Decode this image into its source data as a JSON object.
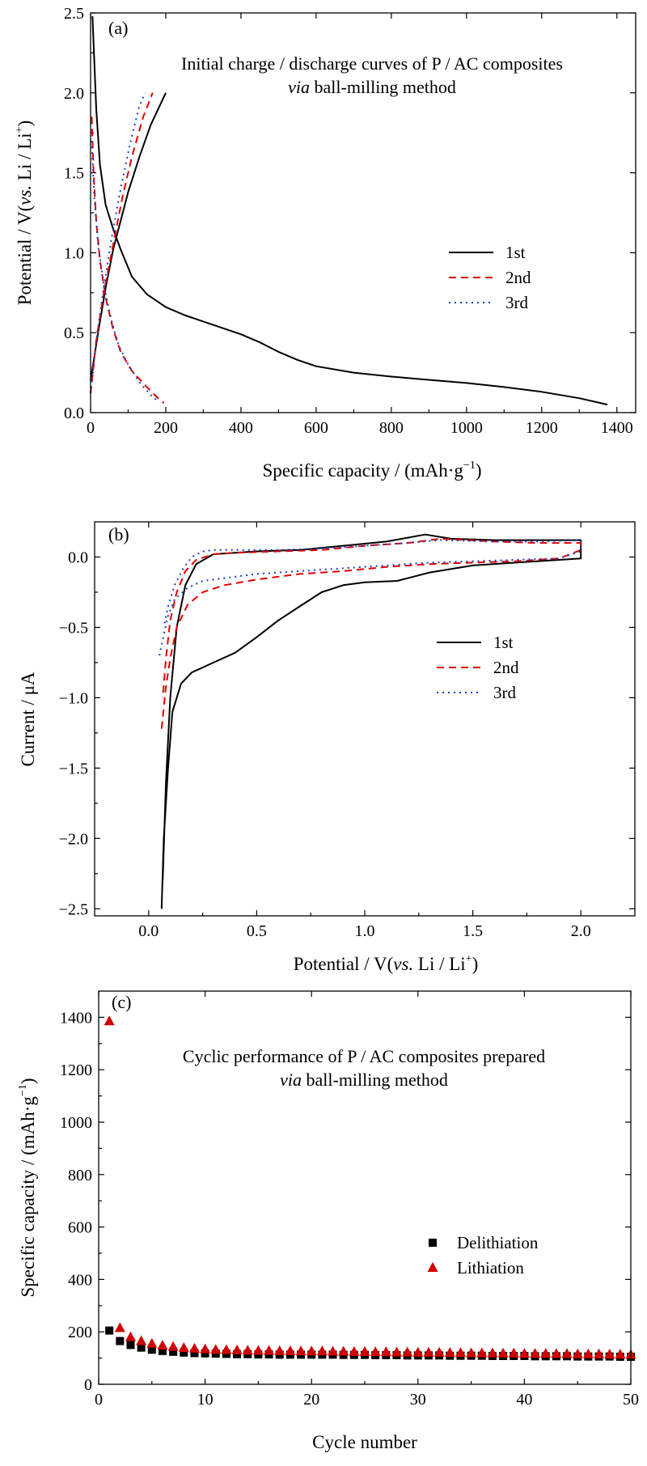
{
  "chart_data": [
    {
      "panel": "(a)",
      "type": "line",
      "title_line1": "Initial charge / discharge curves of P / AC composites",
      "title_line2_italic": "via",
      "title_line2_rest": " ball-milling method",
      "xlabel": "Specific capacity / (mAh·g",
      "xlabel_sup": "−1",
      "xlabel_end": ")",
      "ylabel": "Potential / V(",
      "ylabel_italic": "vs.",
      "ylabel_rest": " Li / Li",
      "ylabel_sup": "+",
      "ylabel_end": ")",
      "xlim": [
        0,
        1450
      ],
      "ylim": [
        0,
        2.5
      ],
      "xticks": [
        "0",
        "200",
        "400",
        "600",
        "800",
        "1000",
        "1200",
        "1400"
      ],
      "xtick_values": [
        0,
        200,
        400,
        600,
        800,
        1000,
        1200,
        1400
      ],
      "yticks": [
        "0.0",
        "0.5",
        "1.0",
        "1.5",
        "2.0",
        "2.5"
      ],
      "ytick_values": [
        0,
        0.5,
        1.0,
        1.5,
        2.0,
        2.5
      ],
      "legend_position": "center-right",
      "series": [
        {
          "name": "1st",
          "color": "#000000",
          "dash": "solid",
          "discharge": [
            [
              5,
              2.48
            ],
            [
              10,
              2.2
            ],
            [
              15,
              1.9
            ],
            [
              25,
              1.55
            ],
            [
              40,
              1.3
            ],
            [
              60,
              1.15
            ],
            [
              80,
              1.02
            ],
            [
              110,
              0.85
            ],
            [
              150,
              0.74
            ],
            [
              200,
              0.66
            ],
            [
              250,
              0.61
            ],
            [
              300,
              0.57
            ],
            [
              350,
              0.53
            ],
            [
              400,
              0.49
            ],
            [
              450,
              0.44
            ],
            [
              500,
              0.38
            ],
            [
              550,
              0.33
            ],
            [
              600,
              0.29
            ],
            [
              700,
              0.25
            ],
            [
              800,
              0.225
            ],
            [
              900,
              0.205
            ],
            [
              1000,
              0.185
            ],
            [
              1100,
              0.16
            ],
            [
              1200,
              0.13
            ],
            [
              1300,
              0.09
            ],
            [
              1375,
              0.05
            ]
          ],
          "charge": [
            [
              0,
              0.2
            ],
            [
              20,
              0.5
            ],
            [
              40,
              0.78
            ],
            [
              60,
              1.02
            ],
            [
              80,
              1.2
            ],
            [
              100,
              1.38
            ],
            [
              130,
              1.6
            ],
            [
              160,
              1.8
            ],
            [
              200,
              2.0
            ]
          ]
        },
        {
          "name": "2nd",
          "color": "#e00000",
          "dash": "dashed",
          "discharge": [
            [
              3,
              1.85
            ],
            [
              8,
              1.5
            ],
            [
              15,
              1.2
            ],
            [
              25,
              0.95
            ],
            [
              40,
              0.72
            ],
            [
              60,
              0.52
            ],
            [
              80,
              0.38
            ],
            [
              110,
              0.26
            ],
            [
              150,
              0.16
            ],
            [
              175,
              0.1
            ],
            [
              195,
              0.06
            ]
          ],
          "charge": [
            [
              0,
              0.12
            ],
            [
              15,
              0.45
            ],
            [
              35,
              0.75
            ],
            [
              60,
              1.05
            ],
            [
              85,
              1.35
            ],
            [
              110,
              1.6
            ],
            [
              140,
              1.85
            ],
            [
              165,
              2.0
            ]
          ]
        },
        {
          "name": "3rd",
          "color": "#1a3cc8",
          "dash": "dotted",
          "discharge": [
            [
              3,
              1.7
            ],
            [
              10,
              1.35
            ],
            [
              20,
              1.05
            ],
            [
              35,
              0.8
            ],
            [
              55,
              0.58
            ],
            [
              75,
              0.42
            ],
            [
              100,
              0.3
            ],
            [
              130,
              0.19
            ],
            [
              160,
              0.11
            ],
            [
              180,
              0.07
            ]
          ],
          "charge": [
            [
              0,
              0.12
            ],
            [
              15,
              0.45
            ],
            [
              35,
              0.78
            ],
            [
              55,
              1.08
            ],
            [
              80,
              1.4
            ],
            [
              105,
              1.68
            ],
            [
              130,
              1.92
            ],
            [
              145,
              2.0
            ]
          ]
        }
      ]
    },
    {
      "panel": "(b)",
      "type": "line",
      "xlabel": "Potential / V(",
      "xlabel_italic": "vs.",
      "xlabel_rest": " Li / Li",
      "xlabel_sup": "+",
      "xlabel_end": ")",
      "ylabel": "Current / μA",
      "xlim": [
        -0.25,
        2.25
      ],
      "ylim": [
        -2.55,
        0.25
      ],
      "xticks": [
        "0.0",
        "0.5",
        "1.0",
        "1.5",
        "2.0"
      ],
      "xtick_values": [
        0,
        0.5,
        1.0,
        1.5,
        2.0
      ],
      "yticks": [
        "0.0",
        "−0.5",
        "−1.0",
        "−1.5",
        "−2.0",
        "−2.5"
      ],
      "ytick_values": [
        0,
        -0.5,
        -1.0,
        -1.5,
        -2.0,
        -2.5
      ],
      "legend_position": "center-right",
      "series": [
        {
          "name": "1st",
          "color": "#000000",
          "dash": "solid",
          "points": [
            [
              0.06,
              -2.5
            ],
            [
              0.07,
              -2.0
            ],
            [
              0.09,
              -1.5
            ],
            [
              0.11,
              -1.1
            ],
            [
              0.15,
              -0.9
            ],
            [
              0.2,
              -0.82
            ],
            [
              0.3,
              -0.75
            ],
            [
              0.4,
              -0.68
            ],
            [
              0.5,
              -0.57
            ],
            [
              0.6,
              -0.45
            ],
            [
              0.7,
              -0.35
            ],
            [
              0.8,
              -0.25
            ],
            [
              0.9,
              -0.2
            ],
            [
              1.0,
              -0.18
            ],
            [
              1.15,
              -0.17
            ],
            [
              1.3,
              -0.11
            ],
            [
              1.5,
              -0.06
            ],
            [
              1.7,
              -0.04
            ],
            [
              1.9,
              -0.02
            ],
            [
              2.0,
              -0.01
            ],
            [
              2.0,
              0.12
            ],
            [
              1.6,
              0.12
            ],
            [
              1.4,
              0.13
            ],
            [
              1.28,
              0.16
            ],
            [
              1.1,
              0.11
            ],
            [
              0.9,
              0.08
            ],
            [
              0.7,
              0.05
            ],
            [
              0.5,
              0.04
            ],
            [
              0.3,
              0.02
            ],
            [
              0.22,
              -0.05
            ],
            [
              0.17,
              -0.2
            ],
            [
              0.13,
              -0.5
            ],
            [
              0.1,
              -1.0
            ],
            [
              0.08,
              -1.6
            ],
            [
              0.065,
              -2.3
            ]
          ]
        },
        {
          "name": "2nd",
          "color": "#e00000",
          "dash": "dashed",
          "points": [
            [
              0.06,
              -1.22
            ],
            [
              0.08,
              -0.92
            ],
            [
              0.1,
              -0.72
            ],
            [
              0.13,
              -0.5
            ],
            [
              0.18,
              -0.34
            ],
            [
              0.25,
              -0.25
            ],
            [
              0.35,
              -0.2
            ],
            [
              0.5,
              -0.16
            ],
            [
              0.7,
              -0.12
            ],
            [
              0.9,
              -0.1
            ],
            [
              1.1,
              -0.07
            ],
            [
              1.3,
              -0.05
            ],
            [
              1.5,
              -0.04
            ],
            [
              1.7,
              -0.03
            ],
            [
              1.9,
              -0.01
            ],
            [
              2.0,
              0.05
            ],
            [
              2.0,
              0.1
            ],
            [
              1.8,
              0.1
            ],
            [
              1.6,
              0.11
            ],
            [
              1.35,
              0.13
            ],
            [
              1.2,
              0.1
            ],
            [
              1.0,
              0.08
            ],
            [
              0.8,
              0.05
            ],
            [
              0.6,
              0.04
            ],
            [
              0.4,
              0.03
            ],
            [
              0.3,
              0.02
            ],
            [
              0.22,
              -0.02
            ],
            [
              0.17,
              -0.1
            ],
            [
              0.13,
              -0.25
            ],
            [
              0.1,
              -0.45
            ],
            [
              0.08,
              -0.72
            ],
            [
              0.065,
              -1.0
            ]
          ]
        },
        {
          "name": "3rd",
          "color": "#1a3cc8",
          "dash": "dotted",
          "points": [
            [
              0.05,
              -0.7
            ],
            [
              0.07,
              -0.55
            ],
            [
              0.09,
              -0.42
            ],
            [
              0.12,
              -0.3
            ],
            [
              0.18,
              -0.22
            ],
            [
              0.25,
              -0.17
            ],
            [
              0.35,
              -0.15
            ],
            [
              0.5,
              -0.12
            ],
            [
              0.7,
              -0.1
            ],
            [
              0.9,
              -0.08
            ],
            [
              1.1,
              -0.06
            ],
            [
              1.3,
              -0.04
            ],
            [
              1.5,
              -0.03
            ],
            [
              1.7,
              -0.02
            ],
            [
              1.9,
              -0.01
            ],
            [
              2.0,
              0.04
            ],
            [
              2.0,
              0.12
            ],
            [
              1.8,
              0.11
            ],
            [
              1.6,
              0.11
            ],
            [
              1.35,
              0.12
            ],
            [
              1.2,
              0.1
            ],
            [
              1.0,
              0.08
            ],
            [
              0.8,
              0.06
            ],
            [
              0.6,
              0.05
            ],
            [
              0.4,
              0.05
            ],
            [
              0.3,
              0.05
            ],
            [
              0.25,
              0.04
            ],
            [
              0.2,
              0.0
            ],
            [
              0.16,
              -0.08
            ],
            [
              0.12,
              -0.2
            ],
            [
              0.09,
              -0.35
            ],
            [
              0.07,
              -0.5
            ]
          ]
        }
      ]
    },
    {
      "panel": "(c)",
      "type": "scatter",
      "title_line1": "Cyclic performance of P / AC composites prepared",
      "title_line2_italic": "via",
      "title_line2_rest": " ball-milling method",
      "xlabel": "Cycle number",
      "ylabel": "Specific capacity / (mAh·g",
      "ylabel_sup": "−1",
      "ylabel_end": ")",
      "xlim": [
        0,
        50
      ],
      "ylim": [
        0,
        1500
      ],
      "xticks": [
        "0",
        "10",
        "20",
        "30",
        "40",
        "50"
      ],
      "xtick_values": [
        0,
        10,
        20,
        30,
        40,
        50
      ],
      "yticks": [
        "0",
        "200",
        "400",
        "600",
        "800",
        "1000",
        "1200",
        "1400"
      ],
      "ytick_values": [
        0,
        200,
        400,
        600,
        800,
        1000,
        1200,
        1400
      ],
      "legend_position": "center-right",
      "series": [
        {
          "name": "Delithiation",
          "marker": "square",
          "color": "#000000",
          "x": [
            1,
            2,
            3,
            4,
            5,
            6,
            7,
            8,
            9,
            10,
            11,
            12,
            13,
            14,
            15,
            16,
            17,
            18,
            19,
            20,
            21,
            22,
            23,
            24,
            25,
            26,
            27,
            28,
            29,
            30,
            31,
            32,
            33,
            34,
            35,
            36,
            37,
            38,
            39,
            40,
            41,
            42,
            43,
            44,
            45,
            46,
            47,
            48,
            49,
            50
          ],
          "y": [
            205,
            165,
            150,
            140,
            132,
            127,
            124,
            121,
            119,
            118,
            117,
            116,
            115,
            115,
            114,
            114,
            113,
            113,
            113,
            113,
            113,
            113,
            112,
            112,
            112,
            111,
            111,
            111,
            110,
            110,
            110,
            110,
            109,
            109,
            109,
            109,
            108,
            108,
            108,
            108,
            107,
            107,
            107,
            107,
            106,
            106,
            106,
            106,
            105,
            105
          ]
        },
        {
          "name": "Lithiation",
          "marker": "triangle",
          "color": "#d00000",
          "x": [
            1,
            2,
            3,
            4,
            5,
            6,
            7,
            8,
            9,
            10,
            11,
            12,
            13,
            14,
            15,
            16,
            17,
            18,
            19,
            20,
            21,
            22,
            23,
            24,
            25,
            26,
            27,
            28,
            29,
            30,
            31,
            32,
            33,
            34,
            35,
            36,
            37,
            38,
            39,
            40,
            41,
            42,
            43,
            44,
            45,
            46,
            47,
            48,
            49,
            50
          ],
          "y": [
            1385,
            215,
            180,
            165,
            155,
            148,
            143,
            139,
            136,
            134,
            132,
            131,
            130,
            129,
            128,
            128,
            127,
            127,
            126,
            126,
            126,
            125,
            125,
            124,
            124,
            123,
            123,
            122,
            122,
            121,
            121,
            121,
            120,
            120,
            119,
            119,
            119,
            118,
            118,
            117,
            117,
            117,
            116,
            116,
            115,
            115,
            115,
            114,
            114,
            113
          ]
        }
      ]
    }
  ]
}
